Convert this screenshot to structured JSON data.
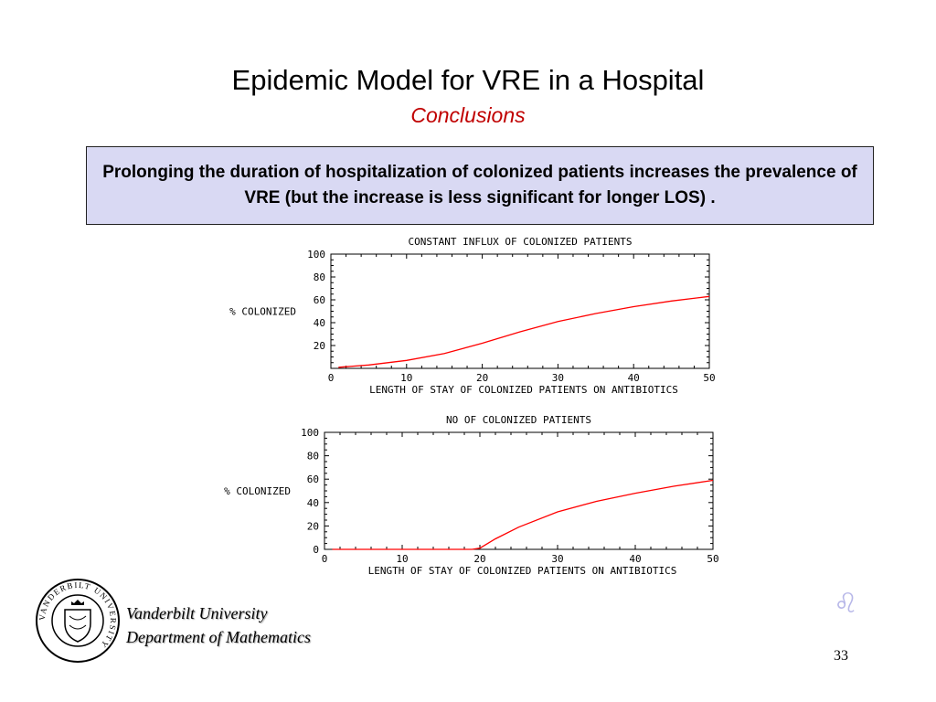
{
  "slide": {
    "title": "Epidemic Model for VRE in a Hospital",
    "subtitle": "Conclusions",
    "callout": "Prolonging the duration of hospitalization of colonized patients increases the prevalence of VRE (but the increase is less significant for longer LOS) .",
    "page_number": "33",
    "nav_symbol": "♌"
  },
  "footer": {
    "university": "Vanderbilt University",
    "department": "Department of Mathematics",
    "seal_text": "VANDERBILT UNIVERSITY"
  },
  "colors": {
    "callout_bg": "#d9d9f3",
    "subtitle": "#c00000",
    "curve": "#ff0000"
  },
  "chart_data": [
    {
      "type": "line",
      "title": "CONSTANT INFLUX OF COLONIZED PATIENTS",
      "xlabel": "LENGTH OF STAY OF COLONIZED PATIENTS ON ANTIBIOTICS",
      "ylabel": "% COLONIZED",
      "xlim": [
        0,
        50
      ],
      "ylim": [
        0,
        100
      ],
      "x_ticks": [
        "0",
        "10",
        "20",
        "30",
        "40",
        "50"
      ],
      "y_ticks": [
        "20",
        "40",
        "60",
        "80",
        "100"
      ],
      "series": [
        {
          "x": [
            1,
            5,
            10,
            15,
            20,
            25,
            30,
            35,
            40,
            45,
            50
          ],
          "y": [
            1,
            3,
            7,
            13,
            22,
            32,
            41,
            48,
            54,
            59,
            63
          ]
        }
      ]
    },
    {
      "type": "line",
      "title": "NO OF COLONIZED PATIENTS",
      "xlabel": "LENGTH OF STAY OF COLONIZED PATIENTS ON ANTIBIOTICS",
      "ylabel": "% COLONIZED",
      "xlim": [
        0,
        50
      ],
      "ylim": [
        0,
        100
      ],
      "x_ticks": [
        "0",
        "10",
        "20",
        "30",
        "40",
        "50"
      ],
      "y_ticks": [
        "0",
        "20",
        "40",
        "60",
        "80",
        "100"
      ],
      "series": [
        {
          "x": [
            1,
            5,
            10,
            15,
            19,
            20,
            22,
            25,
            30,
            35,
            40,
            45,
            50
          ],
          "y": [
            0,
            0,
            0,
            0,
            0,
            1,
            9,
            19,
            32,
            41,
            48,
            54,
            59
          ]
        }
      ]
    }
  ]
}
